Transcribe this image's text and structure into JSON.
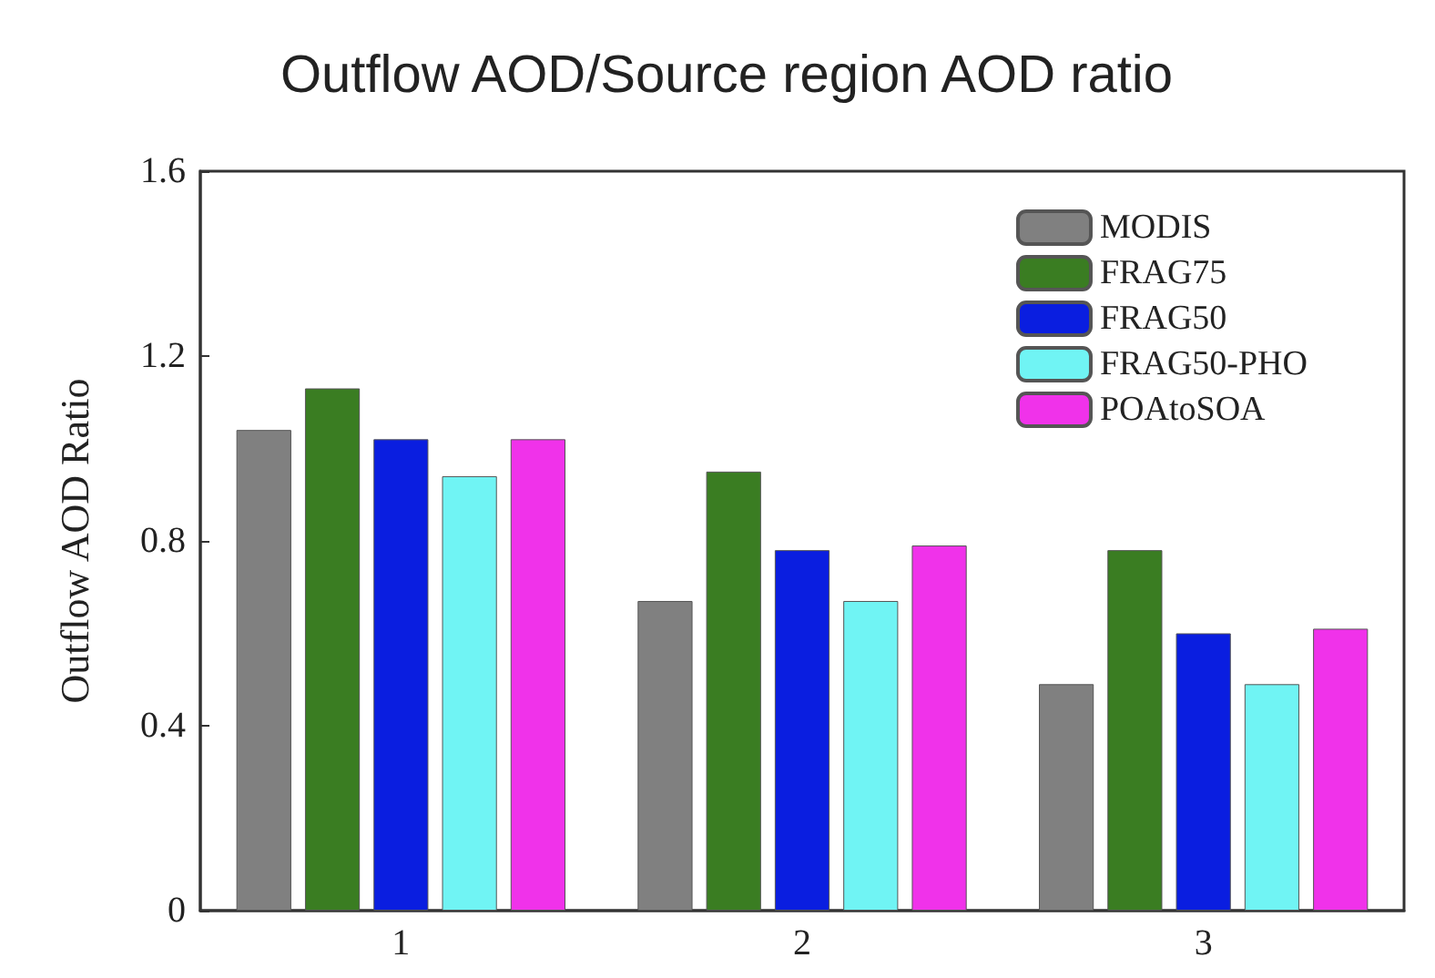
{
  "chart_data": {
    "type": "bar",
    "title": "Outflow AOD/Source region AOD ratio",
    "ylabel": "Outflow AOD Ratio",
    "categories": [
      "1",
      "2",
      "3"
    ],
    "series": [
      {
        "name": "MODIS",
        "color": "#808080",
        "values": [
          1.04,
          0.67,
          0.49
        ]
      },
      {
        "name": "FRAG75",
        "color": "#3a7d22",
        "values": [
          1.13,
          0.95,
          0.78
        ]
      },
      {
        "name": "FRAG50",
        "color": "#0a1ee0",
        "values": [
          1.02,
          0.78,
          0.6
        ]
      },
      {
        "name": "FRAG50-PHO",
        "color": "#70f4f4",
        "values": [
          0.94,
          0.67,
          0.49
        ]
      },
      {
        "name": "POAtoSOA",
        "color": "#f032ea",
        "values": [
          1.02,
          0.79,
          0.61
        ]
      }
    ],
    "ylim": [
      0,
      1.6
    ],
    "yticks": [
      0,
      0.4,
      0.8,
      1.2,
      1.6
    ],
    "grid": false,
    "legend": "top right"
  }
}
